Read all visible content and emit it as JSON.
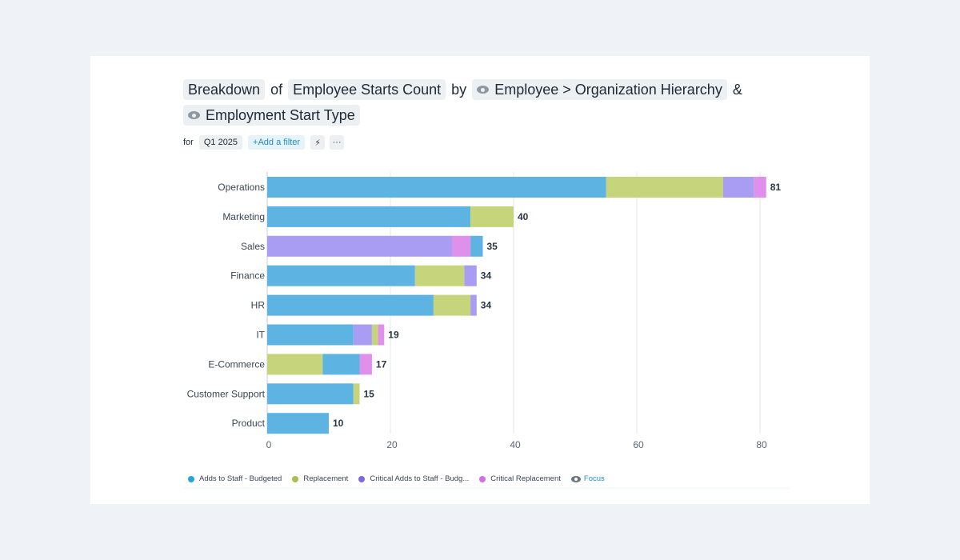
{
  "title": {
    "measure_prefix": "Breakdown",
    "of_word": "of",
    "metric": "Employee Starts Count",
    "by_word": "by",
    "dimension1": "Employee > Organization Hierarchy",
    "and_word": "&",
    "dimension2": "Employment Start Type"
  },
  "filters": {
    "for_label": "for",
    "period": "Q1 2025",
    "add_filter": "+Add a filter",
    "bolt_icon": "⚡",
    "more_icon": "···"
  },
  "legend": {
    "focus_label": "Focus"
  },
  "chart_data": {
    "type": "bar",
    "orientation": "horizontal",
    "stacked": true,
    "title": "Breakdown of Employee Starts Count by Employee > Organization Hierarchy & Employment Start Type",
    "categories": [
      "Operations",
      "Marketing",
      "Sales",
      "Finance",
      "HR",
      "IT",
      "E-Commerce",
      "Customer Support",
      "Product"
    ],
    "series": [
      {
        "name": "Adds to Staff - Budgeted",
        "legend_label": "Adds to Staff - Budgeted",
        "color": "#5db4e3",
        "values": [
          55,
          33,
          2,
          24,
          27,
          14,
          6,
          14,
          10
        ]
      },
      {
        "name": "Replacement",
        "legend_label": "Replacement",
        "color": "#c6d57c",
        "values": [
          19,
          7,
          0,
          8,
          6,
          1,
          9,
          1,
          0
        ]
      },
      {
        "name": "Critical Adds to Staff - Budgeted",
        "legend_label": "Critical Adds to Staff - Budg...",
        "color": "#a99cf3",
        "values": [
          5,
          0,
          30,
          2,
          1,
          3,
          0,
          0,
          0
        ]
      },
      {
        "name": "Critical Replacement",
        "legend_label": "Critical Replacement",
        "color": "#df90ea",
        "values": [
          2,
          0,
          3,
          0,
          0,
          1,
          2,
          0,
          0
        ]
      }
    ],
    "segment_order": [
      [
        "Adds to Staff - Budgeted",
        "Replacement",
        "Critical Adds to Staff - Budgeted",
        "Critical Replacement"
      ],
      [
        "Adds to Staff - Budgeted",
        "Replacement",
        "Critical Adds to Staff - Budgeted",
        "Critical Replacement"
      ],
      [
        "Critical Adds to Staff - Budgeted",
        "Critical Replacement",
        "Adds to Staff - Budgeted",
        "Replacement"
      ],
      [
        "Adds to Staff - Budgeted",
        "Replacement",
        "Critical Adds to Staff - Budgeted",
        "Critical Replacement"
      ],
      [
        "Adds to Staff - Budgeted",
        "Replacement",
        "Critical Adds to Staff - Budgeted",
        "Critical Replacement"
      ],
      [
        "Adds to Staff - Budgeted",
        "Critical Adds to Staff - Budgeted",
        "Replacement",
        "Critical Replacement"
      ],
      [
        "Replacement",
        "Adds to Staff - Budgeted",
        "Critical Replacement",
        "Critical Adds to Staff - Budgeted"
      ],
      [
        "Adds to Staff - Budgeted",
        "Replacement",
        "Critical Adds to Staff - Budgeted",
        "Critical Replacement"
      ],
      [
        "Adds to Staff - Budgeted",
        "Replacement",
        "Critical Adds to Staff - Budgeted",
        "Critical Replacement"
      ]
    ],
    "totals": [
      81,
      40,
      35,
      34,
      34,
      19,
      17,
      15,
      10
    ],
    "xticks": [
      0,
      20,
      40,
      60,
      80
    ],
    "xlim": [
      0,
      84
    ],
    "xlabel": "",
    "ylabel": "",
    "grid": true,
    "legend_position": "bottom-left"
  }
}
